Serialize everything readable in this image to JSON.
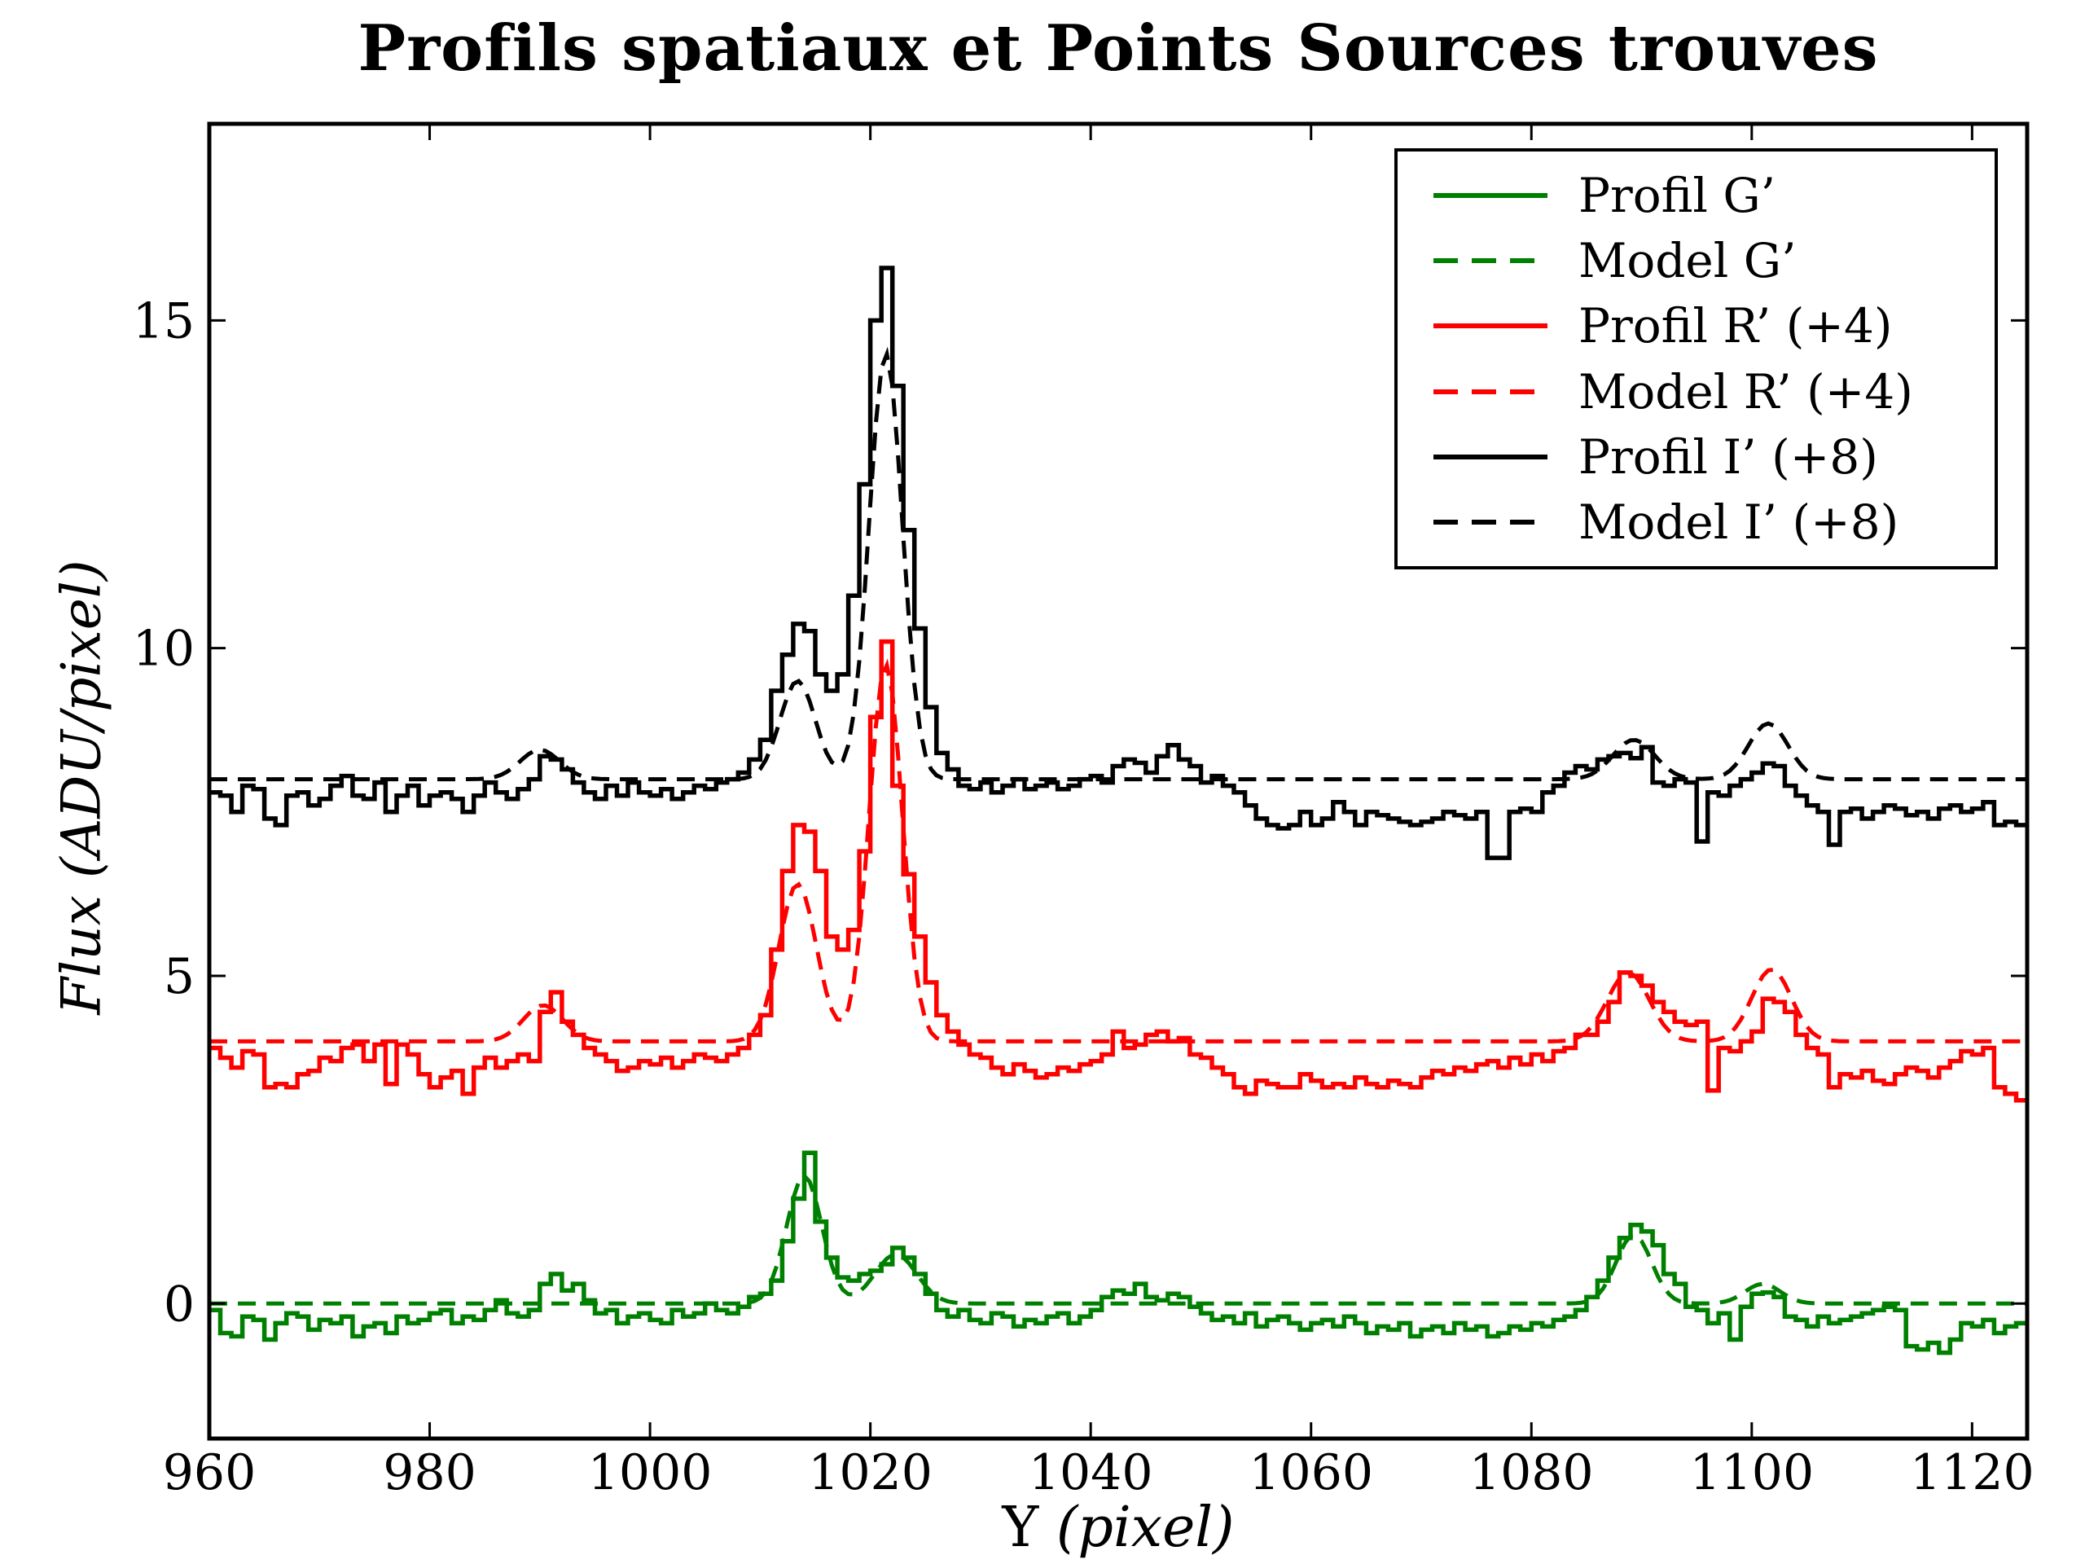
{
  "title": "Profils spatiaux et Points Sources trouves",
  "axes": {
    "xlabel": {
      "upright": "Y ",
      "italic": "(pixel)"
    },
    "ylabel": "Flux (ADU/pixel)",
    "xlim": [
      960,
      1125
    ],
    "ylim": [
      -2.06,
      18.0
    ],
    "x_ticks": [
      960,
      980,
      1000,
      1020,
      1040,
      1060,
      1080,
      1100,
      1120
    ],
    "y_ticks": [
      0,
      5,
      10,
      15
    ]
  },
  "chart_data": {
    "type": "line",
    "title": "Profils spatiaux et Points Sources trouves",
    "xlabel": "Y (pixel)",
    "ylabel": "Flux (ADU/pixel)",
    "xlim": [
      960,
      1125
    ],
    "ylim": [
      -2.06,
      18.0
    ],
    "grid": false,
    "legend_position": "upper right",
    "x_start": 960,
    "x_step": 1,
    "series": [
      {
        "name": "Profil G’",
        "style": "step",
        "color": "#008000",
        "values": [
          -0.1,
          -0.45,
          -0.5,
          -0.2,
          -0.25,
          -0.55,
          -0.3,
          -0.15,
          -0.2,
          -0.4,
          -0.25,
          -0.3,
          -0.2,
          -0.5,
          -0.35,
          -0.3,
          -0.45,
          -0.2,
          -0.3,
          -0.25,
          -0.15,
          -0.1,
          -0.3,
          -0.2,
          -0.25,
          -0.1,
          0.05,
          -0.15,
          -0.2,
          -0.1,
          0.3,
          0.45,
          0.2,
          0.3,
          0.05,
          -0.15,
          -0.1,
          -0.3,
          -0.2,
          -0.15,
          -0.25,
          -0.3,
          -0.1,
          -0.2,
          -0.15,
          0.0,
          -0.1,
          -0.15,
          -0.05,
          0.1,
          0.15,
          0.35,
          0.95,
          1.6,
          2.3,
          1.25,
          0.7,
          0.4,
          0.35,
          0.45,
          0.5,
          0.6,
          0.85,
          0.7,
          0.45,
          0.15,
          -0.1,
          -0.2,
          -0.1,
          -0.25,
          -0.3,
          -0.15,
          -0.2,
          -0.35,
          -0.25,
          -0.3,
          -0.2,
          -0.15,
          -0.3,
          -0.2,
          -0.1,
          0.1,
          0.2,
          0.15,
          0.3,
          0.1,
          0.05,
          0.15,
          0.1,
          -0.05,
          -0.15,
          -0.25,
          -0.2,
          -0.3,
          -0.15,
          -0.35,
          -0.25,
          -0.2,
          -0.3,
          -0.4,
          -0.3,
          -0.25,
          -0.35,
          -0.2,
          -0.3,
          -0.45,
          -0.35,
          -0.4,
          -0.3,
          -0.5,
          -0.4,
          -0.35,
          -0.45,
          -0.3,
          -0.4,
          -0.35,
          -0.5,
          -0.45,
          -0.35,
          -0.4,
          -0.3,
          -0.35,
          -0.25,
          -0.2,
          -0.1,
          0.1,
          0.35,
          0.7,
          1.0,
          1.2,
          1.1,
          0.89,
          0.45,
          0.3,
          -0.05,
          -0.1,
          -0.3,
          -0.15,
          -0.55,
          -0.05,
          0.15,
          0.17,
          0.1,
          -0.2,
          -0.25,
          -0.35,
          -0.2,
          -0.3,
          -0.25,
          -0.2,
          -0.15,
          -0.1,
          -0.05,
          -0.1,
          -0.65,
          -0.7,
          -0.6,
          -0.75,
          -0.55,
          -0.3,
          -0.35,
          -0.25,
          -0.45,
          -0.35,
          -0.3
        ]
      },
      {
        "name": "Model G’",
        "style": "gaussian-model",
        "color": "#008000",
        "baseline": 0,
        "components": [
          [
            1014.0,
            1.95,
            1.6
          ],
          [
            1022.3,
            0.75,
            1.9
          ],
          [
            1089.3,
            1.05,
            1.6
          ],
          [
            1101.0,
            0.3,
            1.6
          ]
        ]
      },
      {
        "name": "Profil R’ (+4)",
        "style": "step",
        "color": "#ff0000",
        "values": [
          3.9,
          3.75,
          3.6,
          3.85,
          3.8,
          3.3,
          3.35,
          3.3,
          3.5,
          3.55,
          3.75,
          3.7,
          3.9,
          3.95,
          3.7,
          3.95,
          3.35,
          3.95,
          3.8,
          3.5,
          3.3,
          3.45,
          3.55,
          3.2,
          3.6,
          3.75,
          3.6,
          3.7,
          3.8,
          3.7,
          4.45,
          4.75,
          4.3,
          4.1,
          3.9,
          3.8,
          3.7,
          3.55,
          3.6,
          3.7,
          3.65,
          3.75,
          3.6,
          3.7,
          3.8,
          3.75,
          3.7,
          3.8,
          3.9,
          4.1,
          4.4,
          5.4,
          6.6,
          7.3,
          7.2,
          6.6,
          5.6,
          5.4,
          5.7,
          6.9,
          8.95,
          10.1,
          7.9,
          6.55,
          5.6,
          4.9,
          4.4,
          4.15,
          3.95,
          3.8,
          3.75,
          3.6,
          3.5,
          3.65,
          3.55,
          3.45,
          3.5,
          3.6,
          3.55,
          3.65,
          3.7,
          3.8,
          4.15,
          3.9,
          3.95,
          4.1,
          4.15,
          4.0,
          4.05,
          3.8,
          3.75,
          3.6,
          3.5,
          3.3,
          3.2,
          3.4,
          3.35,
          3.3,
          3.3,
          3.5,
          3.4,
          3.3,
          3.35,
          3.3,
          3.45,
          3.35,
          3.3,
          3.4,
          3.35,
          3.3,
          3.45,
          3.55,
          3.5,
          3.6,
          3.55,
          3.65,
          3.7,
          3.6,
          3.75,
          3.65,
          3.8,
          3.7,
          3.85,
          3.9,
          4.1,
          4.1,
          4.3,
          4.6,
          5.05,
          5.0,
          4.85,
          4.6,
          4.45,
          4.3,
          4.25,
          4.3,
          3.25,
          3.9,
          3.85,
          4.0,
          4.15,
          4.65,
          4.6,
          4.45,
          4.1,
          3.9,
          3.8,
          3.3,
          3.5,
          3.45,
          3.55,
          3.4,
          3.35,
          3.5,
          3.6,
          3.55,
          3.45,
          3.6,
          3.7,
          3.85,
          3.8,
          3.9,
          3.3,
          3.2,
          3.1
        ]
      },
      {
        "name": "Model R’ (+4)",
        "style": "gaussian-model",
        "color": "#ff0000",
        "baseline": 4,
        "components": [
          [
            990.3,
            0.55,
            1.8
          ],
          [
            1013.4,
            2.4,
            1.7
          ],
          [
            1021.4,
            5.75,
            1.5
          ],
          [
            1088.8,
            1.05,
            1.9
          ],
          [
            1101.8,
            1.1,
            1.8
          ]
        ]
      },
      {
        "name": "Profil I’ (+8)",
        "style": "step",
        "color": "#000000",
        "values": [
          7.8,
          7.75,
          7.5,
          7.9,
          7.85,
          7.4,
          7.3,
          7.75,
          7.8,
          7.6,
          7.7,
          7.9,
          8.05,
          7.75,
          7.7,
          7.95,
          7.5,
          7.75,
          7.9,
          7.6,
          7.75,
          7.8,
          7.7,
          7.5,
          7.75,
          7.95,
          7.8,
          7.7,
          7.85,
          8.0,
          8.35,
          8.3,
          8.15,
          7.95,
          7.8,
          7.7,
          7.9,
          7.75,
          7.95,
          7.8,
          7.75,
          7.85,
          7.7,
          7.8,
          7.9,
          7.85,
          7.95,
          8.0,
          8.1,
          8.3,
          8.6,
          9.35,
          9.9,
          10.37,
          10.26,
          9.6,
          9.35,
          9.6,
          10.8,
          12.5,
          15.0,
          15.8,
          14.0,
          11.8,
          10.3,
          9.1,
          8.4,
          8.15,
          7.9,
          7.85,
          7.95,
          7.8,
          7.9,
          8.0,
          7.85,
          7.9,
          7.95,
          7.85,
          7.9,
          8.0,
          8.05,
          7.95,
          8.2,
          8.3,
          8.25,
          8.1,
          8.35,
          8.52,
          8.3,
          8.2,
          7.95,
          8.05,
          7.9,
          7.8,
          7.6,
          7.4,
          7.3,
          7.25,
          7.3,
          7.5,
          7.3,
          7.4,
          7.65,
          7.5,
          7.3,
          7.5,
          7.45,
          7.4,
          7.35,
          7.3,
          7.35,
          7.4,
          7.5,
          7.45,
          7.4,
          7.5,
          6.8,
          6.8,
          7.5,
          7.55,
          7.5,
          7.8,
          7.9,
          8.1,
          8.2,
          8.15,
          8.3,
          8.35,
          8.4,
          8.32,
          8.49,
          7.95,
          7.9,
          8.0,
          7.95,
          7.05,
          7.8,
          7.75,
          7.9,
          8.0,
          8.1,
          8.24,
          8.2,
          7.9,
          7.75,
          7.6,
          7.5,
          7.0,
          7.5,
          7.55,
          7.4,
          7.5,
          7.6,
          7.55,
          7.45,
          7.5,
          7.4,
          7.55,
          7.6,
          7.5,
          7.55,
          7.65,
          7.3,
          7.35,
          7.3
        ]
      },
      {
        "name": "Model I’ (+8)",
        "style": "gaussian-model",
        "color": "#000000",
        "baseline": 8,
        "components": [
          [
            990.0,
            0.45,
            1.8
          ],
          [
            1013.4,
            1.5,
            1.6
          ],
          [
            1021.4,
            6.5,
            1.5
          ],
          [
            1089.3,
            0.6,
            1.9
          ],
          [
            1101.5,
            0.85,
            1.8
          ]
        ]
      }
    ]
  }
}
